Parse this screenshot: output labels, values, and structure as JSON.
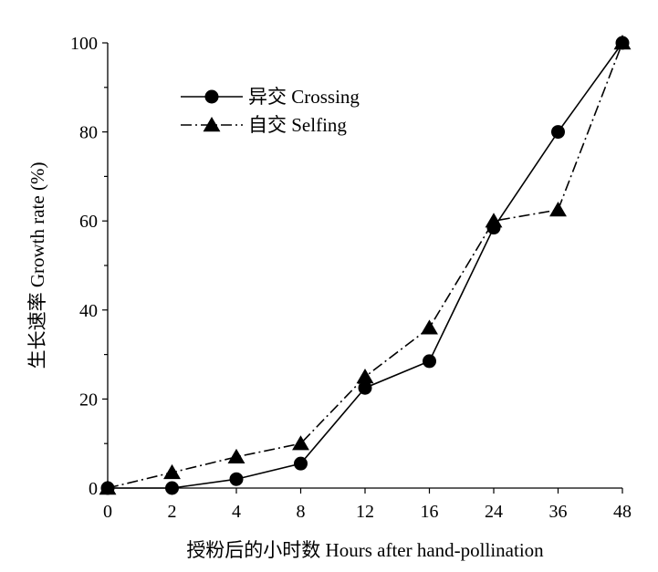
{
  "chart_data": {
    "type": "line",
    "categories": [
      "0",
      "2",
      "4",
      "8",
      "12",
      "16",
      "24",
      "36",
      "48"
    ],
    "series": [
      {
        "name": "异交 Crossing",
        "marker": "circle",
        "dash": "solid",
        "values": [
          0,
          0,
          2,
          5.5,
          22.5,
          28.5,
          58.5,
          80,
          100
        ]
      },
      {
        "name": "自交 Selfing",
        "marker": "triangle",
        "dash": "dash-dot",
        "values": [
          0,
          3.5,
          7,
          10,
          25,
          36,
          60,
          62.5,
          100
        ]
      }
    ],
    "xlabel": "授粉后的小时数 Hours after hand-pollination",
    "ylabel": "生长速率 Growth rate (%)",
    "ylim": [
      0,
      100
    ],
    "yticks": [
      0,
      20,
      40,
      60,
      80,
      100
    ],
    "grid": false,
    "legend": "top-left",
    "color": "#000000"
  }
}
